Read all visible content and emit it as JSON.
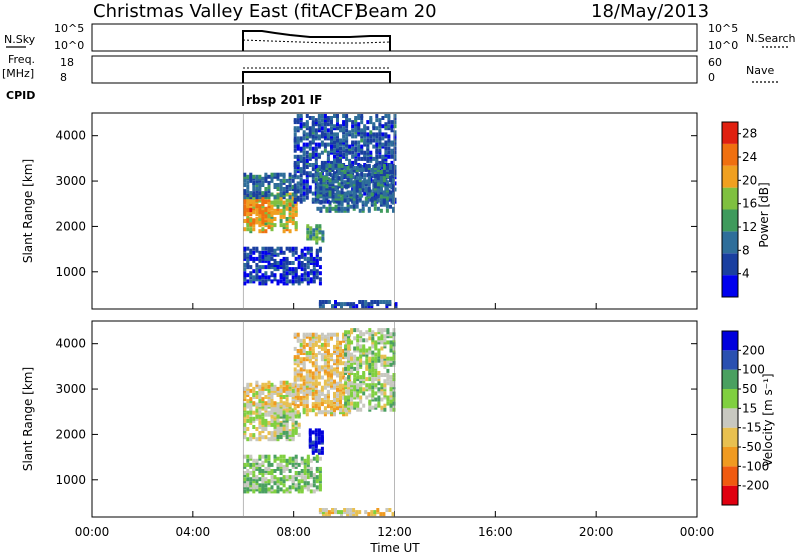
{
  "header": {
    "station": "Christmas Valley East (fitACF)",
    "beam": "Beam 20",
    "date": "18/May/2013"
  },
  "strips": {
    "nsky_label": "N.Sky",
    "nsky_ticks": [
      "10^5",
      "10^0"
    ],
    "nsearch_label": "N.Search",
    "freq_label": "Freq.",
    "freq_unit": "[MHz]",
    "freq_ticks": [
      "18",
      "8"
    ],
    "nave_label": "Nave",
    "nave_ticks": [
      "60",
      "0"
    ],
    "cpid_label": "CPID",
    "cpid_value": "rbsp 201 IF"
  },
  "colors": {
    "power": [
      "#0000ee",
      "#1a3fa0",
      "#2f6e9a",
      "#3f9a5c",
      "#7fc040",
      "#f0a020",
      "#f07010",
      "#e02010"
    ],
    "velocity": [
      "#e00010",
      "#f05a10",
      "#f09a20",
      "#e8c050",
      "#c8c8c0",
      "#80d040",
      "#4aa060",
      "#2a50b0",
      "#0000dd"
    ]
  },
  "chart_data": [
    {
      "type": "heatmap",
      "panel": "power",
      "xlabel": "",
      "ylabel": "Slant Range [km]",
      "xlim_hours": [
        0,
        24
      ],
      "ylim_km": [
        180,
        4500
      ],
      "y_ticks": [
        "1000",
        "2000",
        "3000",
        "4000"
      ],
      "colorbar_label": "Power [dB]",
      "colorbar_ticks": [
        "4",
        "8",
        "12",
        "16",
        "20",
        "24",
        "28"
      ],
      "colorbar_range": [
        0,
        30
      ],
      "data_window_hours": [
        6,
        12
      ],
      "clusters": [
        {
          "t0": 6.0,
          "t1": 8.1,
          "r0": 1850,
          "r1": 2700,
          "value": 19
        },
        {
          "t0": 6.0,
          "t1": 7.0,
          "r0": 2000,
          "r1": 2600,
          "value": 22
        },
        {
          "t0": 6.0,
          "t1": 8.0,
          "r0": 2600,
          "r1": 3100,
          "value": 9
        },
        {
          "t0": 8.0,
          "t1": 12.0,
          "r0": 2500,
          "r1": 4400,
          "value": 7
        },
        {
          "t0": 8.5,
          "t1": 9.2,
          "r0": 1600,
          "r1": 2000,
          "value": 14
        },
        {
          "t0": 8.9,
          "t1": 12.0,
          "r0": 2300,
          "r1": 3300,
          "value": 9
        },
        {
          "t0": 9.0,
          "t1": 12.0,
          "r0": 200,
          "r1": 330,
          "value": 6
        },
        {
          "t0": 6.0,
          "t1": 9.0,
          "r0": 700,
          "r1": 1500,
          "value": 5
        }
      ]
    },
    {
      "type": "heatmap",
      "panel": "velocity",
      "xlabel": "Time UT",
      "ylabel": "Slant Range [km]",
      "xlim_hours": [
        0,
        24
      ],
      "ylim_km": [
        180,
        4500
      ],
      "x_ticks": [
        "00:00",
        "04:00",
        "08:00",
        "12:00",
        "16:00",
        "20:00",
        "00:00"
      ],
      "y_ticks": [
        "1000",
        "2000",
        "3000",
        "4000"
      ],
      "colorbar_label": "Velocity [m s⁻¹]",
      "colorbar_ticks": [
        "200",
        "100",
        "50",
        "15",
        "-15",
        "-50",
        "-100",
        "-200"
      ],
      "colorbar_range": [
        -250,
        250
      ],
      "data_window_hours": [
        6,
        12
      ],
      "clusters": [
        {
          "t0": 6.0,
          "t1": 8.0,
          "r0": 1850,
          "r1": 2650,
          "value": 0
        },
        {
          "t0": 7.2,
          "t1": 8.2,
          "r0": 1900,
          "r1": 2500,
          "value": 30
        },
        {
          "t0": 8.0,
          "t1": 10.2,
          "r0": 2400,
          "r1": 4200,
          "value": -40
        },
        {
          "t0": 10.0,
          "t1": 12.0,
          "r0": 2500,
          "r1": 4300,
          "value": 35
        },
        {
          "t0": 8.6,
          "t1": 9.1,
          "r0": 1550,
          "r1": 2050,
          "value": 240
        },
        {
          "t0": 6.0,
          "t1": 8.0,
          "r0": 2600,
          "r1": 3100,
          "value": -30
        },
        {
          "t0": 9.0,
          "t1": 12.0,
          "r0": 200,
          "r1": 330,
          "value": -30
        },
        {
          "t0": 6.0,
          "t1": 9.0,
          "r0": 700,
          "r1": 1500,
          "value": 60
        }
      ]
    }
  ]
}
